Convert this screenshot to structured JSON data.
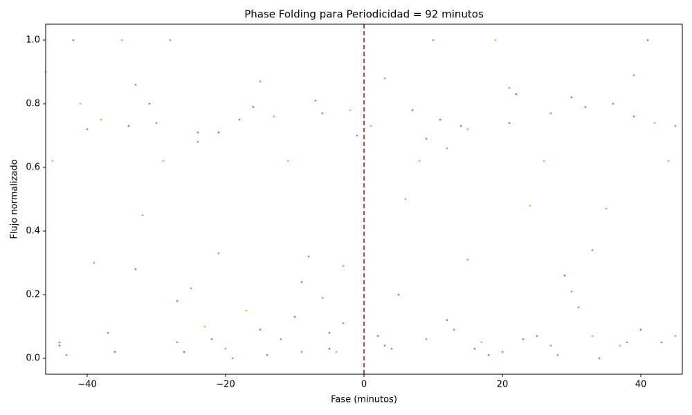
{
  "chart_data": {
    "type": "scatter",
    "title": "Phase Folding para Periodicidad = 92 minutos",
    "x_label": "Fase (minutos)",
    "y_label": "Flujo normalizado",
    "xlim": [
      -46,
      46
    ],
    "ylim": [
      -0.05,
      1.05
    ],
    "xticks": [
      {
        "value": -40,
        "label": "−40"
      },
      {
        "value": -20,
        "label": "−20"
      },
      0,
      20,
      40
    ],
    "yticks": [
      {
        "value": 0,
        "label": "0.0"
      },
      0.2,
      0.4,
      0.6,
      0.8,
      {
        "value": 1,
        "label": "1.0"
      }
    ],
    "grid": false,
    "vline": {
      "x": 0,
      "color": "#d62728"
    },
    "series": [
      {
        "color": "#1f77b4",
        "x": [
          -44,
          -40,
          -36,
          -31,
          -27,
          -22,
          -18,
          -14,
          -9,
          -5,
          -1,
          3,
          7,
          12,
          16,
          21,
          25,
          30,
          34,
          39,
          43,
          -42,
          -33,
          -24,
          -15,
          -6,
          5,
          14,
          23,
          32
        ],
        "values": [
          0.05,
          0.72,
          0.02,
          0.8,
          0.18,
          0.06,
          0.75,
          0.01,
          0.24,
          0.08,
          0.7,
          0.04,
          0.78,
          0.12,
          0.03,
          0.74,
          0.07,
          0.82,
          0.0,
          0.76,
          0.05,
          1.0,
          0.28,
          0.71,
          0.09,
          0.77,
          0.2,
          0.73,
          0.06,
          0.79
        ]
      },
      {
        "color": "#ff7f0e",
        "x": [
          -45,
          -38,
          -29,
          -20,
          -11,
          -2,
          8,
          17,
          26,
          35,
          44,
          -41,
          -32,
          -23,
          -13,
          -4,
          6,
          15,
          24,
          33,
          42,
          -35,
          -17,
          1,
          19,
          37
        ],
        "values": [
          0.62,
          0.75,
          0.62,
          0.03,
          0.62,
          0.78,
          0.62,
          0.05,
          0.62,
          0.47,
          0.62,
          0.8,
          0.45,
          0.1,
          0.76,
          0.02,
          0.5,
          0.72,
          0.48,
          0.07,
          0.74,
          1.0,
          0.15,
          0.73,
          1.0,
          0.04
        ]
      },
      {
        "color": "#2ca02c",
        "x": [
          -43,
          -37,
          -30,
          -25,
          -19,
          -12,
          -7,
          -3,
          4,
          9,
          13,
          20,
          27,
          31,
          38,
          45,
          -28,
          -8,
          10,
          28
        ],
        "values": [
          0.01,
          0.08,
          0.74,
          0.22,
          0.0,
          0.06,
          0.81,
          0.11,
          0.03,
          0.69,
          0.09,
          0.02,
          0.77,
          0.16,
          0.05,
          0.73,
          1.0,
          0.32,
          1.0,
          0.01
        ]
      },
      {
        "color": "#d62728",
        "x": [
          -44,
          -34,
          -26,
          -16,
          -10,
          2,
          11,
          18,
          29,
          36,
          40,
          -21,
          -5,
          22,
          41
        ],
        "values": [
          0.04,
          0.73,
          0.02,
          0.79,
          0.13,
          0.07,
          0.75,
          0.01,
          0.26,
          0.8,
          0.09,
          0.71,
          0.03,
          0.83,
          1.0
        ]
      },
      {
        "color": "#9467bd",
        "x": [
          -46,
          -39,
          -33,
          -27,
          -21,
          -15,
          -9,
          -3,
          3,
          9,
          15,
          21,
          27,
          33,
          39,
          45,
          -24,
          -6,
          12,
          30
        ],
        "values": [
          0.9,
          0.3,
          0.86,
          0.05,
          0.33,
          0.87,
          0.02,
          0.29,
          0.88,
          0.06,
          0.31,
          0.85,
          0.04,
          0.34,
          0.89,
          0.07,
          0.68,
          0.19,
          0.66,
          0.21
        ]
      }
    ]
  }
}
